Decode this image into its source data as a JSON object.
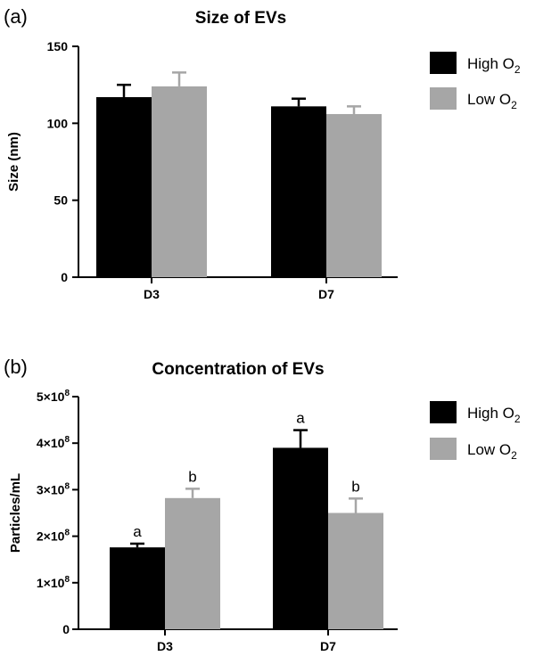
{
  "chart_data": [
    {
      "type": "bar",
      "panel_label": "(a)",
      "title": "Size of EVs",
      "xlabel": "",
      "ylabel": "Size (nm)",
      "ylim": [
        0,
        150
      ],
      "yticks": [
        0,
        50,
        100,
        150
      ],
      "ytick_labels": [
        "0",
        "50",
        "100",
        "150"
      ],
      "categories": [
        "D3",
        "D7"
      ],
      "legend_position": "right",
      "series": [
        {
          "name_main": "High O",
          "name_sub": "2",
          "color": "#000000",
          "values": [
            117,
            111
          ],
          "errors": [
            8,
            5
          ],
          "sig_labels": [
            "",
            ""
          ]
        },
        {
          "name_main": "Low O",
          "name_sub": "2",
          "color": "#a6a6a6",
          "values": [
            124,
            106
          ],
          "errors": [
            9,
            5
          ],
          "sig_labels": [
            "",
            ""
          ]
        }
      ]
    },
    {
      "type": "bar",
      "panel_label": "(b)",
      "title": "Concentration of EVs",
      "xlabel": "",
      "ylabel": "Particles/mL",
      "ylim": [
        0,
        500000000
      ],
      "yticks": [
        0,
        100000000,
        200000000,
        300000000,
        400000000,
        500000000
      ],
      "ytick_labels": [
        {
          "main": "0",
          "sup": ""
        },
        {
          "main": "1×10",
          "sup": "8"
        },
        {
          "main": "2×10",
          "sup": "8"
        },
        {
          "main": "3×10",
          "sup": "8"
        },
        {
          "main": "4×10",
          "sup": "8"
        },
        {
          "main": "5×10",
          "sup": "8"
        }
      ],
      "categories": [
        "D3",
        "D7"
      ],
      "legend_position": "right",
      "series": [
        {
          "name_main": "High O",
          "name_sub": "2",
          "color": "#000000",
          "values": [
            176000000,
            390000000
          ],
          "errors": [
            8000000,
            38000000
          ],
          "sig_labels": [
            "a",
            "a"
          ]
        },
        {
          "name_main": "Low O",
          "name_sub": "2",
          "color": "#a6a6a6",
          "values": [
            282000000,
            250000000
          ],
          "errors": [
            20000000,
            31000000
          ],
          "sig_labels": [
            "b",
            "b"
          ]
        }
      ]
    }
  ]
}
